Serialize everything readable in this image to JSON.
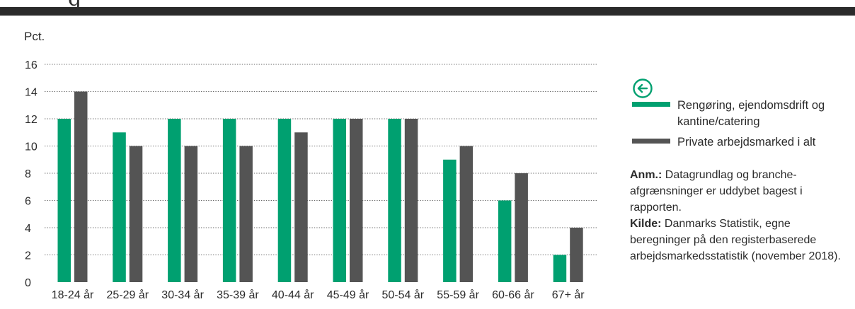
{
  "header": {
    "partial_glyph": "g"
  },
  "chart_data": {
    "type": "bar",
    "ylabel": "Pct.",
    "ylim": [
      0,
      16
    ],
    "yticks": [
      "0",
      "2",
      "4",
      "6",
      "8",
      "10",
      "12",
      "14",
      "16"
    ],
    "categories": [
      "18-24 år",
      "25-29 år",
      "30-34 år",
      "35-39 år",
      "40-44 år",
      "45-49 år",
      "50-54 år",
      "55-59 år",
      "60-66 år",
      "67+ år"
    ],
    "series": [
      {
        "name": "Rengøring, ejendomsdrift og kantine/catering",
        "color": "#00a070",
        "values": [
          12,
          11,
          12,
          12,
          12,
          12,
          12,
          9,
          6,
          2
        ]
      },
      {
        "name": "Private arbejdsmarked i alt",
        "color": "#545454",
        "values": [
          14,
          10,
          10,
          10,
          11,
          12,
          12,
          10,
          8,
          4
        ]
      }
    ],
    "grid": "dotted horizontal",
    "legend_position": "right"
  },
  "legend": {
    "icon": "arrow-left-circle-icon",
    "items": [
      {
        "label": "Rengøring, ejendomsdrift og kantine/catering",
        "color": "#00a070"
      },
      {
        "label": "Private arbejdsmarked i alt",
        "color": "#545454"
      }
    ]
  },
  "notes": {
    "anm_label": "Anm.:",
    "anm_text": "Datagrundlag og branche-afgrænsninger er uddybet bagest i rapporten.",
    "kilde_label": "Kilde:",
    "kilde_text": "Danmarks Statistik, egne beregninger på den registerbaserede arbejdsmarkedsstatistik (november 2018)."
  }
}
